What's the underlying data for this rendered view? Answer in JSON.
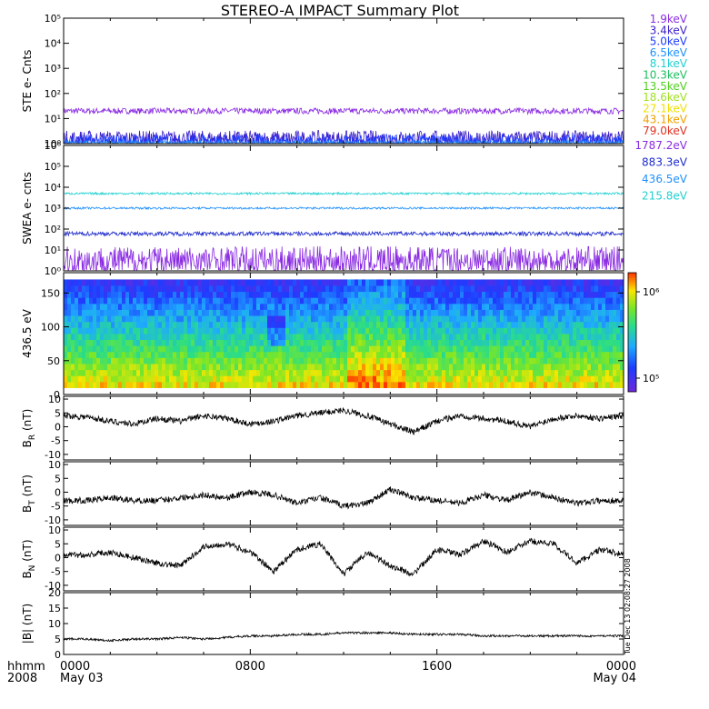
{
  "title": "STEREO-A IMPACT Summary Plot",
  "time_axis": {
    "hhmm_label": "hhmm",
    "year_label": "2008",
    "ticks": [
      {
        "t": 0,
        "time": "0000",
        "date": "May 03"
      },
      {
        "t": 8,
        "time": "0800",
        "date": ""
      },
      {
        "t": 16,
        "time": "1600",
        "date": ""
      },
      {
        "t": 24,
        "time": "0000",
        "date": "May 04"
      }
    ],
    "range_hours": [
      0,
      24
    ]
  },
  "side_annotation": "Tue Dec 13 02:08:27 2008",
  "ste_legend": [
    {
      "label": "1.9keV",
      "color": "#8a2be2"
    },
    {
      "label": "3.4keV",
      "color": "#3c1fc8"
    },
    {
      "label": "5.0keV",
      "color": "#1e3cff"
    },
    {
      "label": "6.5keV",
      "color": "#1e90ff"
    },
    {
      "label": "8.1keV",
      "color": "#20d0d0"
    },
    {
      "label": "10.3keV",
      "color": "#20c060"
    },
    {
      "label": "13.5keV",
      "color": "#50d020"
    },
    {
      "label": "18.6keV",
      "color": "#a0e020"
    },
    {
      "label": "27.1keV",
      "color": "#f0e000"
    },
    {
      "label": "43.1keV",
      "color": "#f0a000"
    },
    {
      "label": "79.0keV",
      "color": "#e03020"
    }
  ],
  "swea_legend": [
    {
      "label": "1787.2eV",
      "color": "#8a2be2"
    },
    {
      "label": "883.3eV",
      "color": "#1e2ccc"
    },
    {
      "label": "436.5eV",
      "color": "#1e90ff"
    },
    {
      "label": "215.8eV",
      "color": "#20d0d0"
    }
  ],
  "colorbar": {
    "tick_labels": [
      "10⁶",
      "10⁵"
    ]
  },
  "chart_data": [
    {
      "type": "line",
      "panel": "ste",
      "ylabel": "STE e- Cnts",
      "yscale": "log",
      "ylim": [
        1,
        100000
      ],
      "ytick_labels": [
        "10⁰",
        "10¹",
        "10²",
        "10³",
        "10⁴",
        "10⁵"
      ],
      "series": [
        {
          "name": "1.9keV",
          "level": 20,
          "noise": 0.12
        },
        {
          "name": "3.4keV",
          "level": 1.5,
          "noise": 0.35
        },
        {
          "name": "5.0keV",
          "level": 1.2,
          "noise": 0.3
        },
        {
          "name": "6.5keV",
          "level": 1.05,
          "noise": 0.1
        }
      ]
    },
    {
      "type": "line",
      "panel": "swea",
      "ylabel": "SWEA e- cnts",
      "yscale": "log",
      "ylim": [
        1,
        1000000
      ],
      "ytick_labels": [
        "10⁰",
        "10¹",
        "10²",
        "10³",
        "10⁴",
        "10⁵",
        "10⁶"
      ],
      "series": [
        {
          "name": "215.8eV",
          "level": 5000,
          "noise": 0.05
        },
        {
          "name": "436.5eV",
          "level": 1000,
          "noise": 0.05
        },
        {
          "name": "883.3eV",
          "level": 60,
          "noise": 0.1
        },
        {
          "name": "1787.2eV",
          "level": 3,
          "noise": 0.7
        }
      ]
    },
    {
      "type": "heatmap",
      "panel": "pitch_angle",
      "ylabel": "436.5 eV",
      "ylim": [
        0,
        180
      ],
      "yticks": [
        0,
        50,
        100,
        150
      ],
      "color_range_log": [
        4.85,
        6.15
      ]
    },
    {
      "type": "line",
      "panel": "br",
      "ylabel": "B_R (nT)",
      "ylim": [
        -12,
        11
      ],
      "yticks": [
        -10,
        -5,
        0,
        5,
        10
      ],
      "x": [
        0,
        1,
        2,
        3,
        4,
        5,
        6,
        7,
        8,
        9,
        10,
        11,
        12,
        13,
        14,
        15,
        16,
        17,
        18,
        19,
        20,
        21,
        22,
        23,
        24
      ],
      "y": [
        4,
        3.5,
        2,
        1,
        3,
        2,
        4,
        3,
        1,
        2,
        4,
        5,
        6,
        4,
        1,
        -2,
        2,
        4,
        3,
        2,
        0,
        3,
        4,
        3,
        4
      ]
    },
    {
      "type": "line",
      "panel": "bt",
      "ylabel": "B_T (nT)",
      "ylim": [
        -12,
        11
      ],
      "yticks": [
        -10,
        -5,
        0,
        5,
        10
      ],
      "x": [
        0,
        1,
        2,
        3,
        4,
        5,
        6,
        7,
        8,
        9,
        10,
        11,
        12,
        13,
        14,
        15,
        16,
        17,
        18,
        19,
        20,
        21,
        22,
        23,
        24
      ],
      "y": [
        -3,
        -3,
        -2,
        -3,
        -3,
        -2,
        -1,
        -2,
        0,
        -1,
        -4,
        -2,
        -5,
        -4,
        1,
        -2,
        -3,
        -4,
        -1,
        -3,
        0,
        -2,
        -4,
        -3,
        -3
      ]
    },
    {
      "type": "line",
      "panel": "bn",
      "ylabel": "B_N (nT)",
      "ylim": [
        -12,
        11
      ],
      "yticks": [
        -10,
        -5,
        0,
        5,
        10
      ],
      "x": [
        0,
        1,
        2,
        3,
        4,
        5,
        6,
        7,
        8,
        9,
        10,
        11,
        12,
        13,
        14,
        15,
        16,
        17,
        18,
        19,
        20,
        21,
        22,
        23,
        24
      ],
      "y": [
        1,
        1,
        2,
        0,
        -2,
        -3,
        4,
        5,
        2,
        -5,
        3,
        5,
        -6,
        2,
        -3,
        -6,
        3,
        1,
        6,
        2,
        6,
        5,
        -2,
        3,
        1
      ]
    },
    {
      "type": "line",
      "panel": "bmag",
      "ylabel": "|B| (nT)",
      "ylim": [
        0,
        20
      ],
      "yticks": [
        0,
        5,
        10,
        15,
        20
      ],
      "x": [
        0,
        1,
        2,
        3,
        4,
        5,
        6,
        7,
        8,
        9,
        10,
        11,
        12,
        13,
        14,
        15,
        16,
        17,
        18,
        19,
        20,
        21,
        22,
        23,
        24
      ],
      "y": [
        5,
        5,
        4.5,
        5,
        5,
        5.5,
        5,
        5.5,
        6,
        6,
        6.5,
        6.5,
        7,
        7,
        7,
        6.5,
        6.5,
        6.5,
        6,
        6,
        6,
        6,
        6,
        6,
        6
      ]
    }
  ]
}
